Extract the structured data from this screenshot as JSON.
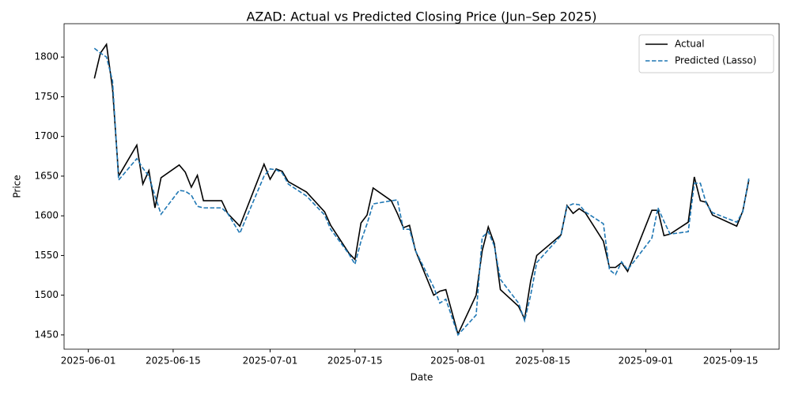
{
  "chart_data": {
    "type": "line",
    "title": "AZAD: Actual vs Predicted Closing Price (Jun–Sep 2025)",
    "x_label": "Date",
    "y_label": "Price",
    "x": [
      "2025-06-02",
      "2025-06-03",
      "2025-06-04",
      "2025-06-05",
      "2025-06-06",
      "2025-06-09",
      "2025-06-10",
      "2025-06-11",
      "2025-06-12",
      "2025-06-13",
      "2025-06-16",
      "2025-06-17",
      "2025-06-18",
      "2025-06-19",
      "2025-06-20",
      "2025-06-23",
      "2025-06-24",
      "2025-06-26",
      "2025-06-30",
      "2025-07-01",
      "2025-07-02",
      "2025-07-03",
      "2025-07-04",
      "2025-07-07",
      "2025-07-10",
      "2025-07-11",
      "2025-07-14",
      "2025-07-15",
      "2025-07-16",
      "2025-07-17",
      "2025-07-18",
      "2025-07-21",
      "2025-07-22",
      "2025-07-23",
      "2025-07-24",
      "2025-07-25",
      "2025-07-28",
      "2025-07-29",
      "2025-07-30",
      "2025-08-01",
      "2025-08-04",
      "2025-08-05",
      "2025-08-06",
      "2025-08-07",
      "2025-08-08",
      "2025-08-11",
      "2025-08-12",
      "2025-08-13",
      "2025-08-14",
      "2025-08-18",
      "2025-08-19",
      "2025-08-20",
      "2025-08-21",
      "2025-08-22",
      "2025-08-25",
      "2025-08-26",
      "2025-08-27",
      "2025-08-28",
      "2025-08-29",
      "2025-09-02",
      "2025-09-03",
      "2025-09-04",
      "2025-09-05",
      "2025-09-08",
      "2025-09-09",
      "2025-09-10",
      "2025-09-11",
      "2025-09-12",
      "2025-09-16",
      "2025-09-17",
      "2025-09-18"
    ],
    "series": [
      {
        "name": "Actual",
        "color": "#000000",
        "dash": false,
        "values": [
          1773,
          1805,
          1816,
          1760,
          1650,
          1689,
          1640,
          1657,
          1610,
          1648,
          1664,
          1655,
          1636,
          1651,
          1619,
          1619,
          1603,
          1587,
          1665,
          1646,
          1659,
          1656,
          1643,
          1630,
          1605,
          1588,
          1553,
          1545,
          1591,
          1601,
          1635,
          1619,
          1603,
          1585,
          1588,
          1556,
          1500,
          1505,
          1507,
          1451,
          1500,
          1556,
          1586,
          1565,
          1507,
          1486,
          1470,
          1518,
          1550,
          1576,
          1613,
          1603,
          1609,
          1604,
          1568,
          1535,
          1535,
          1541,
          1530,
          1607,
          1607,
          1575,
          1577,
          1592,
          1649,
          1619,
          1617,
          1601,
          1587,
          1606,
          1645
        ]
      },
      {
        "name": "Predicted (Lasso)",
        "color": "#1f77b4",
        "dash": true,
        "values": [
          1811,
          1805,
          1800,
          1770,
          1645,
          1672,
          1660,
          1650,
          1625,
          1602,
          1632,
          1631,
          1626,
          1612,
          1610,
          1610,
          1603,
          1578,
          1650,
          1659,
          1658,
          1654,
          1640,
          1625,
          1601,
          1583,
          1552,
          1539,
          1568,
          1590,
          1615,
          1619,
          1620,
          1583,
          1583,
          1556,
          1510,
          1490,
          1495,
          1450,
          1475,
          1573,
          1580,
          1562,
          1520,
          1490,
          1468,
          1500,
          1541,
          1575,
          1612,
          1615,
          1614,
          1605,
          1590,
          1532,
          1526,
          1542,
          1532,
          1572,
          1610,
          1593,
          1577,
          1580,
          1641,
          1641,
          1615,
          1604,
          1592,
          1605,
          1647
        ]
      }
    ],
    "xlim": [
      "2025-05-28",
      "2025-09-23"
    ],
    "xticks": [
      "2025-06-01",
      "2025-06-15",
      "2025-07-01",
      "2025-07-15",
      "2025-08-01",
      "2025-08-15",
      "2025-09-01",
      "2025-09-15"
    ],
    "ylim": [
      1432,
      1842
    ],
    "yticks": [
      1450,
      1500,
      1550,
      1600,
      1650,
      1700,
      1750,
      1800
    ],
    "grid": false,
    "legend": "upper right"
  }
}
